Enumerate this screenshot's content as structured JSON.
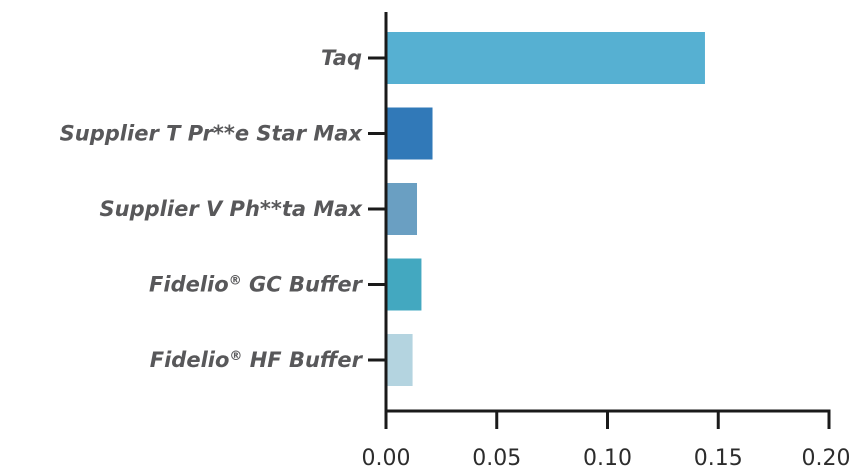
{
  "chart_data": {
    "type": "bar",
    "orientation": "horizontal",
    "title": "",
    "xlabel": "",
    "ylabel": "",
    "xlim": [
      0,
      0.2
    ],
    "x_ticks": [
      "0.00",
      "0.05",
      "0.10",
      "0.15",
      "0.20"
    ],
    "grid": false,
    "legend": "none",
    "categories": [
      {
        "name": "Taq",
        "super": "",
        "suffix": ""
      },
      {
        "name": "Supplier T Pr**e Star Max",
        "super": "",
        "suffix": ""
      },
      {
        "name": "Supplier V Ph**ta Max",
        "super": "",
        "suffix": ""
      },
      {
        "name": "Fidelio",
        "super": "®",
        "suffix": " GC Buffer"
      },
      {
        "name": "Fidelio",
        "super": "®",
        "suffix": " HF Buffer"
      }
    ],
    "values": [
      0.144,
      0.021,
      0.014,
      0.016,
      0.012
    ],
    "colors": [
      "#56b0d2",
      "#3179b8",
      "#6a9fc2",
      "#43a8c0",
      "#b4d4e0"
    ]
  }
}
